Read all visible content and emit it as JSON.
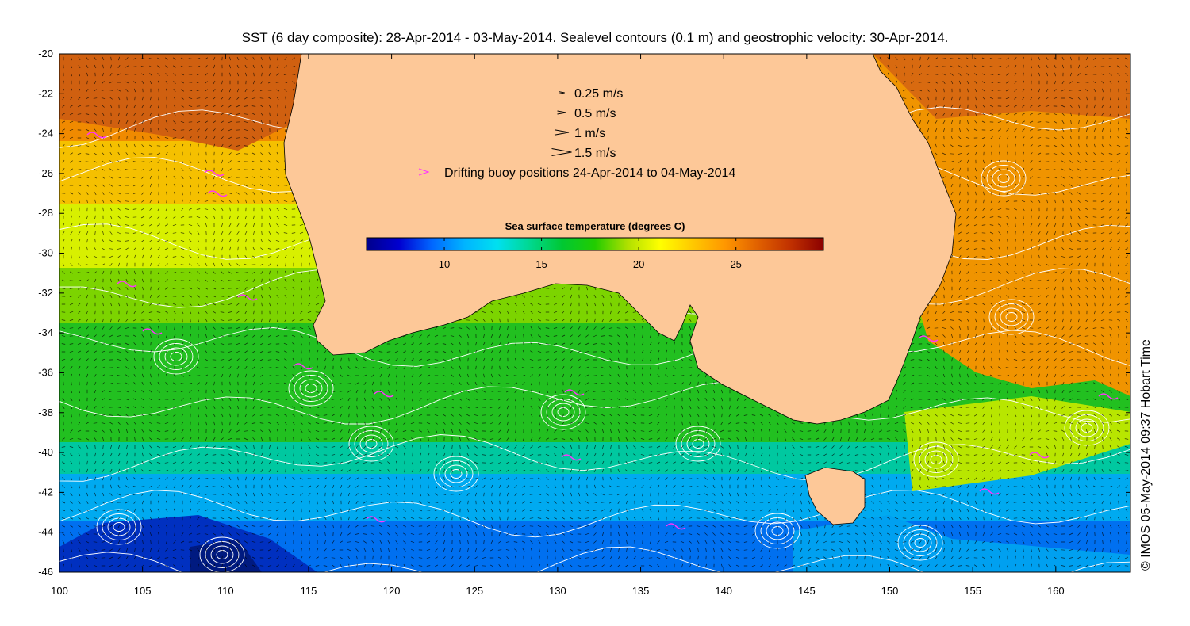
{
  "title": "SST (6 day composite): 28-Apr-2014 - 03-May-2014. Sealevel contours (0.1 m) and geostrophic velocity: 30-Apr-2014.",
  "credit": "© IMOS 05-May-2014 09:37 Hobart Time",
  "legend": {
    "velocity_items": [
      {
        "label": "0.25 m/s",
        "speed": 0.25
      },
      {
        "label": "0.5 m/s",
        "speed": 0.5
      },
      {
        "label": "1 m/s",
        "speed": 1
      },
      {
        "label": "1.5 m/s",
        "speed": 1.5
      }
    ],
    "buoy_label": "Drifting buoy positions 24-Apr-2014 to 04-May-2014",
    "buoy_color": "#ff33ff"
  },
  "colorbar": {
    "label": "Sea surface temperature (degrees C)",
    "min": 6,
    "max": 29.5,
    "ticks": [
      "10",
      "15",
      "20",
      "25"
    ],
    "tick_values": [
      10,
      15,
      20,
      25
    ],
    "colors": [
      "#00008b",
      "#0000d0",
      "#0066ff",
      "#00b4ff",
      "#00e0f0",
      "#00d890",
      "#00c832",
      "#22cc00",
      "#b0e000",
      "#ffff00",
      "#ffc800",
      "#ff9600",
      "#e06000",
      "#c03000",
      "#8b0000"
    ]
  },
  "map": {
    "x_ticks": [
      "100",
      "105",
      "110",
      "115",
      "120",
      "125",
      "130",
      "135",
      "140",
      "145",
      "150",
      "155",
      "160"
    ],
    "y_ticks": [
      "-20",
      "-22",
      "-24",
      "-26",
      "-28",
      "-30",
      "-32",
      "-34",
      "-36",
      "-38",
      "-40",
      "-42",
      "-44",
      "-46"
    ],
    "lon_range": [
      100,
      164.5
    ],
    "lat_range": [
      -46,
      -20
    ],
    "land_color": "#fdc898",
    "contour_color": "#ffffff",
    "arrow_color": "#000000"
  }
}
